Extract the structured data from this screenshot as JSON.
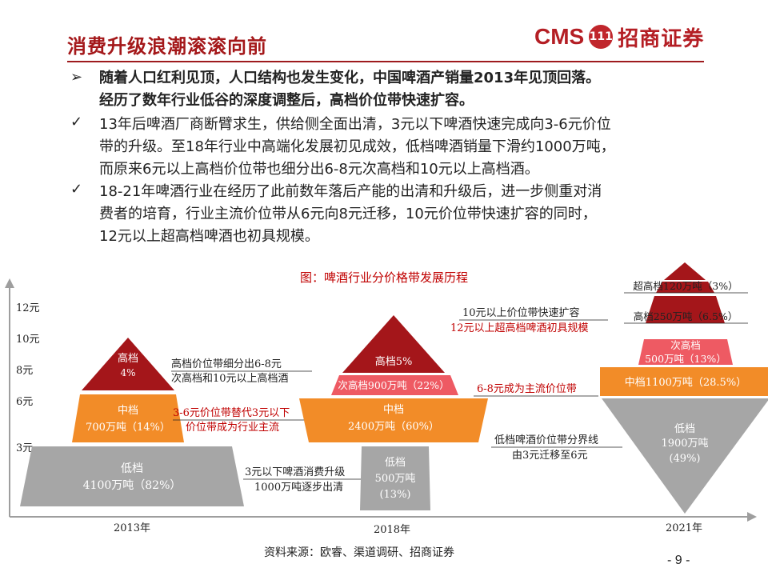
{
  "header": {
    "title": "消费升级浪潮滚滚向前",
    "logo_latin": "CMS",
    "logo_badge": "111",
    "logo_cn": "招商证券"
  },
  "text_blocks": [
    {
      "bullet": "➢",
      "lines": [
        "随着人口红利见顶，人口结构也发生变化，中国啤酒产销量2013年见顶回落。",
        "经历了数年行业低谷的深度调整后，高档价位带快速扩容。"
      ]
    },
    {
      "bullet": "✓",
      "lines": [
        "13年后啤酒厂商断臂求生，供给侧全面出清，3元以下啤酒快速完成向3-6元价位",
        "带的升级。至18年行业中高端化发展初见成效，低档啤酒销量下滑约1000万吨，",
        "而原来6元以上高档价位带也细分出6-8元次高档和10元以上高档酒。"
      ]
    },
    {
      "bullet": "✓",
      "lines": [
        "18-21年啤酒行业在经历了此前数年落后产能的出清和升级后，进一步侧重对消",
        "费者的培育，行业主流价位带从6元向8元迁移，10元价位带快速扩容的同时，",
        "12元以上超高档啤酒也初具规模。"
      ]
    }
  ],
  "diagram": {
    "title": "图：啤酒行业分价格带发展历程",
    "y_ticks": [
      "12元",
      "10元",
      "8元",
      "6元",
      "3元"
    ],
    "years": [
      "2013年",
      "2018年",
      "2021年"
    ],
    "y2013": {
      "high": [
        "高档",
        "4%"
      ],
      "mid": [
        "中档",
        "700万吨（14%）"
      ],
      "low": [
        "低档",
        "4100万吨（82%）"
      ]
    },
    "y2018": {
      "high": "高档5%",
      "sub_high": "次高档900万吨（22%）",
      "mid": [
        "中档",
        "2400万吨（60%）"
      ],
      "low": [
        "低档",
        "500万吨",
        "(13%)"
      ]
    },
    "y2021": {
      "super_high": "超高档120万吨（3%）",
      "high": "高档250万吨（6.5%）",
      "sub_high": [
        "次高档",
        "500万吨（13%）"
      ],
      "mid": "中档1100万吨（28.5%）",
      "low": [
        "低档",
        "1900万吨",
        "(49%)"
      ]
    },
    "notes": {
      "n1": [
        "高档价位带细分出6-8元",
        "次高档和10元以上高档酒"
      ],
      "n2": [
        "3-6元价位带替代3元以下",
        "价位带成为行业主流"
      ],
      "n3": [
        "3元以下啤酒消费升级",
        "1000万吨逐步出清"
      ],
      "n4": [
        "10元以上价位带快速扩容",
        "12元以上超高档啤酒初具规模"
      ],
      "n5": "6-8元成为主流价位带",
      "n6": [
        "低档啤酒价位带分界线",
        "由3元迁移至6元"
      ]
    },
    "colors": {
      "dark_red": "#a4161a",
      "orange": "#f28c28",
      "pink": "#ee5a63",
      "gray": "#a6a6a6",
      "red_text": "#c00000"
    }
  },
  "footer": {
    "source": "资料来源：欧睿、渠道调研、招商证券",
    "page": "- 9 -"
  }
}
